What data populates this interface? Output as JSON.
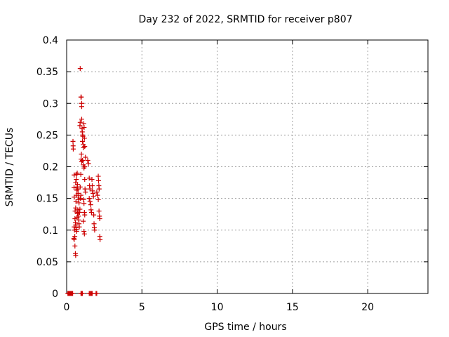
{
  "chart_data": {
    "type": "scatter",
    "title": "Day 232 of 2022, SRMTID for receiver p807",
    "xlabel": "GPS time / hours",
    "ylabel": "SRMTID / TECUs",
    "xlim": [
      0,
      24
    ],
    "ylim": [
      0,
      0.4
    ],
    "xticks": [
      0,
      5,
      10,
      15,
      20
    ],
    "yticks": [
      0,
      0.05,
      0.1,
      0.15,
      0.2,
      0.25,
      0.3,
      0.35,
      0.4
    ],
    "xtick_labels": [
      "0",
      "5",
      "10",
      "15",
      "20"
    ],
    "ytick_labels": [
      "0",
      "0.05",
      "0.1",
      "0.15",
      "0.2",
      "0.25",
      "0.3",
      "0.35",
      "0.4"
    ],
    "grid": true,
    "marker": "plus",
    "color": "#cc0000",
    "series": [
      {
        "points": [
          [
            0.08,
            0
          ],
          [
            0.12,
            0
          ],
          [
            0.16,
            0
          ],
          [
            0.2,
            0
          ],
          [
            0.24,
            0
          ],
          [
            0.28,
            0
          ],
          [
            0.32,
            0
          ],
          [
            0.36,
            0
          ],
          [
            0.4,
            0
          ],
          [
            0.95,
            0
          ],
          [
            1.0,
            0
          ],
          [
            1.05,
            0
          ],
          [
            1.5,
            0
          ],
          [
            1.55,
            0
          ],
          [
            1.6,
            0
          ],
          [
            1.65,
            0
          ],
          [
            1.7,
            0
          ],
          [
            1.95,
            0
          ],
          [
            2.0,
            0
          ],
          [
            0.42,
            0.24
          ],
          [
            0.43,
            0.233
          ],
          [
            0.44,
            0.228
          ],
          [
            0.5,
            0.187
          ],
          [
            0.49,
            0.167
          ],
          [
            0.5,
            0.152
          ],
          [
            0.5,
            0.105
          ],
          [
            0.52,
            0.1
          ],
          [
            0.54,
            0.09
          ],
          [
            0.48,
            0.087
          ],
          [
            0.5,
            0.085
          ],
          [
            0.55,
            0.075
          ],
          [
            0.58,
            0.063
          ],
          [
            0.6,
            0.06
          ],
          [
            0.55,
            0.118
          ],
          [
            0.58,
            0.112
          ],
          [
            0.6,
            0.108
          ],
          [
            0.62,
            0.104
          ],
          [
            0.64,
            0.101
          ],
          [
            0.66,
            0.098
          ],
          [
            0.56,
            0.13
          ],
          [
            0.6,
            0.135
          ],
          [
            0.62,
            0.145
          ],
          [
            0.65,
            0.155
          ],
          [
            0.68,
            0.163
          ],
          [
            0.7,
            0.168
          ],
          [
            0.6,
            0.175
          ],
          [
            0.64,
            0.18
          ],
          [
            0.66,
            0.188
          ],
          [
            0.7,
            0.19
          ],
          [
            0.72,
            0.172
          ],
          [
            0.74,
            0.165
          ],
          [
            0.76,
            0.158
          ],
          [
            0.78,
            0.152
          ],
          [
            0.8,
            0.148
          ],
          [
            0.82,
            0.143
          ],
          [
            0.7,
            0.12
          ],
          [
            0.72,
            0.126
          ],
          [
            0.74,
            0.132
          ],
          [
            0.76,
            0.128
          ],
          [
            0.78,
            0.122
          ],
          [
            0.8,
            0.116
          ],
          [
            0.82,
            0.11
          ],
          [
            0.84,
            0.105
          ],
          [
            0.86,
            0.128
          ],
          [
            0.88,
            0.133
          ],
          [
            0.9,
            0.168
          ],
          [
            0.92,
            0.15
          ],
          [
            0.94,
            0.188
          ],
          [
            0.95,
            0.155
          ],
          [
            0.96,
            0.212
          ],
          [
            0.98,
            0.22
          ],
          [
            0.88,
            0.265
          ],
          [
            0.9,
            0.27
          ],
          [
            0.95,
            0.31
          ],
          [
            0.97,
            0.31
          ],
          [
            1.0,
            0.3
          ],
          [
            1.0,
            0.295
          ],
          [
            0.9,
            0.355
          ],
          [
            1.0,
            0.275
          ],
          [
            1.02,
            0.26
          ],
          [
            1.04,
            0.255
          ],
          [
            1.06,
            0.25
          ],
          [
            1.08,
            0.248
          ],
          [
            1.05,
            0.24
          ],
          [
            1.1,
            0.235
          ],
          [
            1.12,
            0.23
          ],
          [
            1.14,
            0.268
          ],
          [
            1.16,
            0.262
          ],
          [
            1.18,
            0.245
          ],
          [
            1.2,
            0.232
          ],
          [
            1.0,
            0.208
          ],
          [
            1.05,
            0.21
          ],
          [
            1.1,
            0.203
          ],
          [
            1.15,
            0.198
          ],
          [
            1.2,
            0.18
          ],
          [
            1.22,
            0.165
          ],
          [
            1.25,
            0.16
          ],
          [
            1.12,
            0.148
          ],
          [
            1.15,
            0.142
          ],
          [
            1.18,
            0.128
          ],
          [
            1.2,
            0.124
          ],
          [
            1.1,
            0.114
          ],
          [
            1.15,
            0.098
          ],
          [
            1.18,
            0.094
          ],
          [
            1.2,
            0.2
          ],
          [
            1.25,
            0.215
          ],
          [
            1.4,
            0.21
          ],
          [
            1.45,
            0.205
          ],
          [
            1.5,
            0.182
          ],
          [
            1.52,
            0.17
          ],
          [
            1.55,
            0.165
          ],
          [
            1.5,
            0.15
          ],
          [
            1.55,
            0.145
          ],
          [
            1.6,
            0.14
          ],
          [
            1.62,
            0.132
          ],
          [
            1.65,
            0.128
          ],
          [
            1.68,
            0.18
          ],
          [
            1.7,
            0.17
          ],
          [
            1.72,
            0.162
          ],
          [
            1.75,
            0.158
          ],
          [
            1.78,
            0.153
          ],
          [
            1.8,
            0.124
          ],
          [
            1.82,
            0.11
          ],
          [
            1.84,
            0.104
          ],
          [
            1.86,
            0.1
          ],
          [
            2.1,
            0.185
          ],
          [
            2.12,
            0.178
          ],
          [
            2.14,
            0.17
          ],
          [
            2.16,
            0.165
          ],
          [
            2.0,
            0.16
          ],
          [
            2.05,
            0.155
          ],
          [
            2.1,
            0.148
          ],
          [
            2.15,
            0.13
          ],
          [
            2.18,
            0.122
          ],
          [
            2.2,
            0.118
          ],
          [
            2.2,
            0.09
          ],
          [
            2.22,
            0.085
          ]
        ]
      }
    ]
  }
}
